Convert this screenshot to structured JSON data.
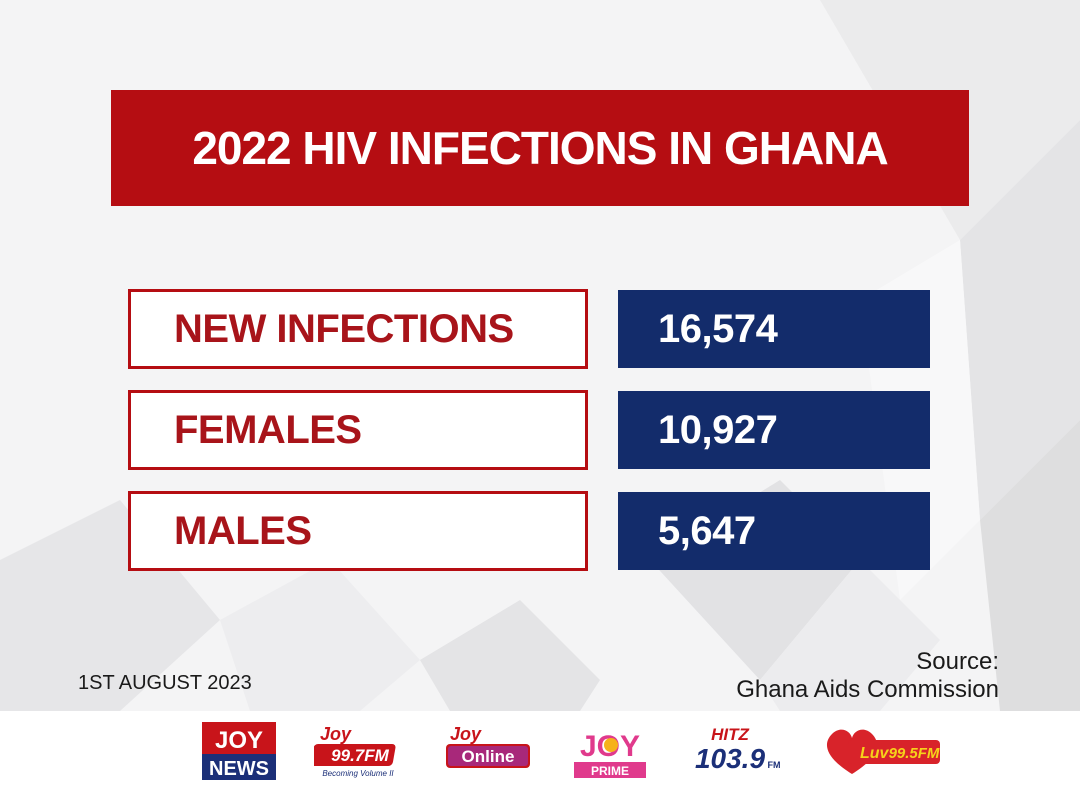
{
  "title": "2022 HIV INFECTIONS IN GHANA",
  "rows": [
    {
      "label": "NEW INFECTIONS",
      "value": "16,574"
    },
    {
      "label": "FEMALES",
      "value": "10,927"
    },
    {
      "label": "MALES",
      "value": "5,647"
    }
  ],
  "date": "1ST AUGUST 2023",
  "source": {
    "line1": "Source:",
    "line2": "Ghana Aids Commission"
  },
  "logos": {
    "joynews": {
      "top": "JOY",
      "bottom": "NEWS"
    },
    "joyfm": {
      "brand": "Joy",
      "freq": "99.7FM",
      "tagline": "Becoming Volume II"
    },
    "joyonline": {
      "brand": "Joy",
      "name": "Online"
    },
    "joyprime": {
      "brand": "JOY",
      "sub": "PRIME"
    },
    "hitz": {
      "brand": "HITZ",
      "freq": "103.9",
      "fm": "FM"
    },
    "luv": {
      "brand": "Luv",
      "freq": "99.5FM"
    }
  },
  "colors": {
    "brand_red": "#b50d12",
    "navy": "#132c6b",
    "background": "#f4f4f5"
  }
}
